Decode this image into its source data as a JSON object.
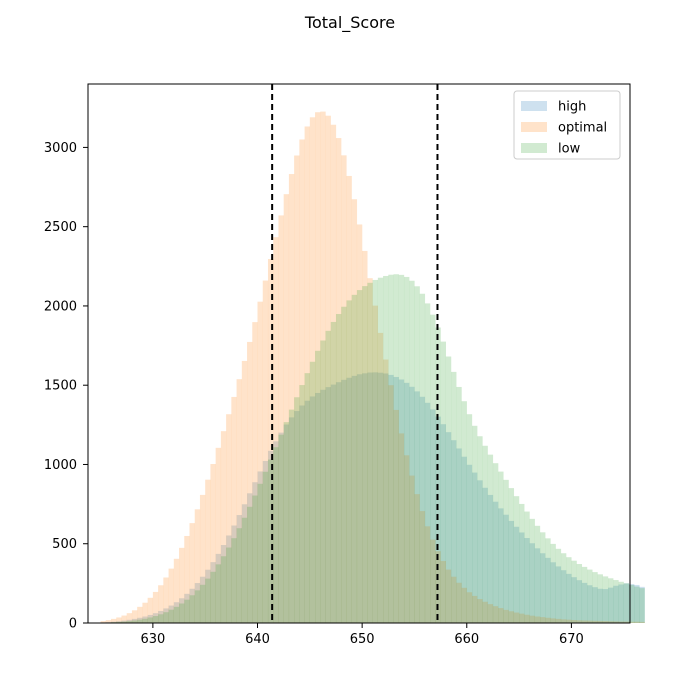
{
  "chart_data": {
    "type": "histogram",
    "title": "Total_Score",
    "xlabel": "",
    "ylabel": "",
    "xlim": [
      623.8,
      675.6
    ],
    "ylim": [
      0,
      3400
    ],
    "xticks": [
      630,
      640,
      650,
      660,
      670
    ],
    "yticks": [
      0,
      500,
      1000,
      1500,
      2000,
      2500,
      3000
    ],
    "legend_position": "top-right",
    "grid": false,
    "bin_width": 0.5,
    "bin_start": 625,
    "vlines": [
      641.4,
      657.2
    ],
    "series": [
      {
        "name": "high",
        "color": "#1f77b4",
        "alpha": 0.22,
        "values": [
          4,
          6,
          8,
          11,
          15,
          20,
          26,
          33,
          41,
          51,
          62,
          76,
          92,
          110,
          131,
          156,
          184,
          216,
          252,
          292,
          336,
          384,
          436,
          492,
          552,
          615,
          681,
          749,
          818,
          888,
          956,
          1022,
          1086,
          1146,
          1201,
          1252,
          1297,
          1337,
          1372,
          1402,
          1429,
          1451,
          1471,
          1488,
          1504,
          1519,
          1534,
          1547,
          1559,
          1569,
          1575,
          1580,
          1581,
          1579,
          1574,
          1565,
          1552,
          1536,
          1515,
          1490,
          1461,
          1427,
          1389,
          1347,
          1302,
          1254,
          1204,
          1153,
          1101,
          1049,
          998,
          949,
          900,
          853,
          808,
          765,
          723,
          683,
          644,
          607,
          571,
          536,
          503,
          471,
          440,
          411,
          383,
          357,
          333,
          310,
          289,
          270,
          253,
          238,
          226,
          216,
          214,
          223,
          235,
          243,
          250,
          245,
          240,
          228
        ]
      },
      {
        "name": "optimal",
        "color": "#ff7f0e",
        "alpha": 0.22,
        "values": [
          12,
          18,
          26,
          35,
          47,
          62,
          80,
          102,
          128,
          159,
          196,
          238,
          287,
          343,
          405,
          474,
          549,
          630,
          717,
          808,
          904,
          1003,
          1105,
          1210,
          1317,
          1426,
          1538,
          1653,
          1773,
          1898,
          2027,
          2160,
          2296,
          2434,
          2571,
          2705,
          2832,
          2949,
          3050,
          3132,
          3190,
          3222,
          3226,
          3200,
          3143,
          3059,
          2950,
          2820,
          2673,
          2514,
          2347,
          2175,
          2002,
          1830,
          1662,
          1500,
          1344,
          1196,
          1058,
          930,
          813,
          706,
          610,
          526,
          453,
          391,
          337,
          292,
          254,
          222,
          194,
          171,
          151,
          134,
          119,
          106,
          94,
          83,
          74,
          66,
          59,
          52,
          46,
          41,
          37,
          33,
          29,
          26,
          23,
          21,
          19,
          17,
          16,
          15,
          14,
          13,
          12,
          11,
          10,
          9,
          9,
          8,
          8,
          7
        ]
      },
      {
        "name": "low",
        "color": "#2ca02c",
        "alpha": 0.22,
        "values": [
          2,
          3,
          5,
          7,
          9,
          12,
          16,
          21,
          27,
          35,
          44,
          55,
          68,
          84,
          102,
          123,
          147,
          175,
          206,
          241,
          280,
          323,
          370,
          421,
          476,
          535,
          598,
          664,
          733,
          804,
          878,
          954,
          1031,
          1109,
          1188,
          1267,
          1346,
          1424,
          1501,
          1576,
          1648,
          1717,
          1782,
          1843,
          1899,
          1949,
          1995,
          2035,
          2070,
          2100,
          2125,
          2146,
          2164,
          2178,
          2189,
          2197,
          2200,
          2196,
          2183,
          2159,
          2124,
          2077,
          2016,
          1945,
          1864,
          1775,
          1681,
          1584,
          1489,
          1399,
          1317,
          1244,
          1178,
          1118,
          1062,
          1008,
          955,
          903,
          851,
          800,
          751,
          703,
          657,
          613,
          572,
          534,
          499,
          468,
          440,
          415,
          393,
          372,
          354,
          337,
          321,
          307,
          294,
          282,
          271,
          260,
          250,
          240,
          230,
          220
        ]
      }
    ]
  }
}
